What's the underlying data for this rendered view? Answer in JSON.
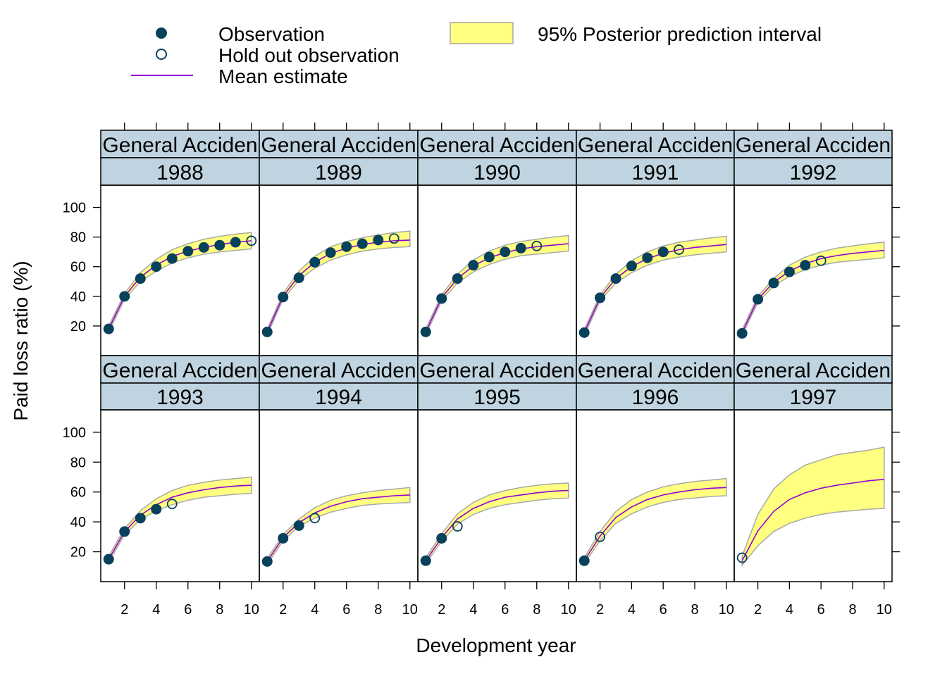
{
  "colors": {
    "observation": "#08415C",
    "mean_line": "#9400D3",
    "band_fill": "#FFFF80",
    "band_stroke": "#A8A8A8",
    "strip_fill": "#BFD4E0"
  },
  "legend": {
    "observation": "Observation",
    "holdout": "Hold out observation",
    "mean": "Mean estimate",
    "interval": "95% Posterior prediction interval"
  },
  "chart_data": {
    "type": "line",
    "xlabel": "Development year",
    "ylabel": "Paid loss ratio (%)",
    "xlim": [
      0.5,
      10.5
    ],
    "ylim": [
      0,
      115
    ],
    "x_ticks": [
      2,
      4,
      6,
      8,
      10
    ],
    "y_ticks": [
      20,
      40,
      60,
      80,
      100
    ],
    "strip_label": "General Acciden",
    "x": [
      1,
      2,
      3,
      4,
      5,
      6,
      7,
      8,
      9,
      10
    ],
    "panels": [
      {
        "year": "1988",
        "mean": [
          18,
          40,
          53,
          61,
          67,
          70.5,
          73,
          75,
          76.5,
          77.5
        ],
        "lower": [
          16,
          38,
          50,
          57,
          62.5,
          66,
          68.5,
          70,
          71,
          72
        ],
        "upper": [
          20,
          42,
          56,
          65,
          71.5,
          75.5,
          78.5,
          80.5,
          82,
          83
        ],
        "observed": [
          18,
          40,
          52,
          60,
          65.5,
          70.5,
          73,
          74.5,
          76.5
        ],
        "holdout": [
          77.5
        ]
      },
      {
        "year": "1989",
        "mean": [
          16,
          40,
          54,
          63,
          69,
          72.5,
          75,
          76.5,
          77.5,
          78
        ],
        "lower": [
          14,
          38,
          51,
          59,
          64.5,
          68,
          70.5,
          72,
          73,
          73.5
        ],
        "upper": [
          18,
          42,
          57,
          67,
          73.5,
          77,
          79.5,
          81.5,
          83,
          84
        ],
        "observed": [
          16,
          39.5,
          52.5,
          63,
          69.5,
          73.5,
          75.5,
          78
        ],
        "holdout": [
          79
        ]
      },
      {
        "year": "1990",
        "mean": [
          16,
          39,
          52,
          60.5,
          66,
          69.5,
          72,
          73.5,
          74.5,
          75.5
        ],
        "lower": [
          14,
          37,
          49,
          56.5,
          61.5,
          65,
          67.5,
          68.5,
          69.5,
          70.5
        ],
        "upper": [
          18,
          41,
          55,
          64.5,
          70.5,
          74.5,
          77,
          78.5,
          80,
          81
        ],
        "observed": [
          16,
          38.5,
          52,
          61,
          66.5,
          70,
          72.5
        ],
        "holdout": [
          74
        ]
      },
      {
        "year": "1991",
        "mean": [
          15.5,
          39,
          52,
          60,
          65.5,
          69,
          71.5,
          73,
          74,
          75
        ],
        "lower": [
          13.5,
          37,
          49,
          56,
          61,
          64.5,
          66.5,
          68,
          69,
          70
        ],
        "upper": [
          17.5,
          41,
          55,
          64,
          70,
          74,
          76.5,
          78,
          79.5,
          80.5
        ],
        "observed": [
          15.5,
          39,
          52,
          60.5,
          66,
          70
        ],
        "holdout": [
          71.5
        ]
      },
      {
        "year": "1992",
        "mean": [
          15.5,
          38,
          49.5,
          57,
          62,
          65.5,
          67.5,
          69,
          70,
          71
        ],
        "lower": [
          13.5,
          36,
          47,
          53.5,
          58,
          61,
          63,
          64,
          65,
          66
        ],
        "upper": [
          17.5,
          40,
          52,
          61,
          66.5,
          70,
          72.5,
          74,
          75.5,
          76.5
        ],
        "observed": [
          15,
          38,
          49,
          56.5,
          61
        ],
        "holdout": [
          64
        ]
      },
      {
        "year": "1993",
        "mean": [
          15,
          33.5,
          44.5,
          51.5,
          56.5,
          59.5,
          61.5,
          63,
          64,
          64.5
        ],
        "lower": [
          13,
          31.5,
          41.5,
          47.5,
          51.5,
          54.5,
          56.5,
          57.5,
          58.5,
          59
        ],
        "upper": [
          17,
          35.5,
          47.5,
          55.5,
          61,
          64.5,
          66.5,
          68,
          69,
          70
        ],
        "observed": [
          15,
          33.5,
          42.5,
          48.5
        ],
        "holdout": [
          52
        ]
      },
      {
        "year": "1994",
        "mean": [
          13.5,
          29.5,
          39.5,
          46,
          50.5,
          53.5,
          55.5,
          56.5,
          57.5,
          58
        ],
        "lower": [
          11.5,
          27.5,
          37,
          42.5,
          46.5,
          49,
          51,
          52,
          52.5,
          53
        ],
        "upper": [
          15.5,
          31.5,
          42,
          49.5,
          54.5,
          57.5,
          59.5,
          61,
          62,
          63
        ],
        "observed": [
          13.5,
          29,
          37.5
        ],
        "holdout": [
          42.5
        ]
      },
      {
        "year": "1995",
        "mean": [
          14,
          29.5,
          42,
          49,
          53.5,
          56.5,
          58,
          59.5,
          60.5,
          61
        ],
        "lower": [
          12,
          27,
          38.5,
          45,
          49,
          51.5,
          53,
          54.5,
          55.5,
          56
        ],
        "upper": [
          16,
          32,
          45.5,
          53,
          58,
          61,
          63,
          64.5,
          65.5,
          66
        ],
        "observed": [
          14,
          29
        ],
        "holdout": [
          37
        ]
      },
      {
        "year": "1996",
        "mean": [
          14,
          30.5,
          43,
          50,
          55,
          58,
          60,
          61.5,
          62.5,
          63
        ],
        "lower": [
          12,
          27.5,
          39,
          45.5,
          50,
          53,
          55,
          56,
          57,
          57.5
        ],
        "upper": [
          16,
          33.5,
          47,
          55,
          60,
          63.5,
          65.5,
          67,
          68,
          69
        ],
        "observed": [
          14
        ],
        "holdout": [
          30
        ]
      },
      {
        "year": "1997",
        "mean": [
          14,
          34,
          47,
          55,
          59.5,
          62.5,
          64.5,
          66,
          67.5,
          68.5
        ],
        "lower": [
          11,
          24,
          33.5,
          39,
          42.5,
          45,
          46.5,
          47.5,
          48.5,
          49
        ],
        "upper": [
          17,
          45,
          62,
          71.5,
          78,
          81.5,
          85,
          86.5,
          88,
          90
        ],
        "observed": [],
        "holdout": [
          16
        ]
      }
    ]
  }
}
